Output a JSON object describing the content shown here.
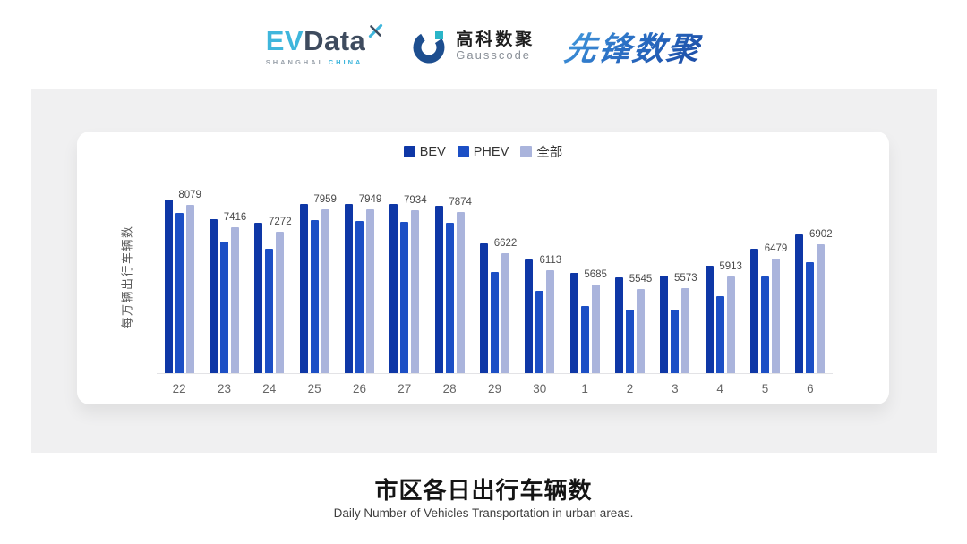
{
  "header": {
    "logos": {
      "evdata": {
        "ev": "EV",
        "data": "Data",
        "sub_left": "SHANGHAI",
        "sub_right": "CHINA",
        "accent_color": "#3FB6DC",
        "dark_color": "#3E4B5E"
      },
      "gausscode": {
        "cn": "高科数聚",
        "en": "Gausscode",
        "icon_color": "#1D4E8F",
        "icon_accent": "#2AB5C8"
      },
      "xianfeng": {
        "text": "先锋数聚",
        "color": "#2A6FC4"
      }
    }
  },
  "chart_card": {
    "background": "#FFFFFF",
    "panel_background": "#F0F0F1",
    "legend": [
      {
        "label": "BEV",
        "color": "#0E37A6"
      },
      {
        "label": "PHEV",
        "color": "#1C4FC5"
      },
      {
        "label": "全部",
        "color": "#AAB4DC"
      }
    ],
    "y_axis_title": "每万辆出行车辆数"
  },
  "chart_data": {
    "type": "bar",
    "title": "市区各日出行车辆数",
    "ylabel": "每万辆出行车辆数",
    "xlabel": "",
    "categories": [
      "22",
      "23",
      "24",
      "25",
      "26",
      "27",
      "28",
      "29",
      "30",
      "1",
      "2",
      "3",
      "4",
      "5",
      "6"
    ],
    "series": [
      {
        "name": "BEV",
        "color": "#0E37A6",
        "estimated": true,
        "values": [
          8240,
          7660,
          7540,
          8130,
          8120,
          8130,
          8050,
          6920,
          6450,
          6040,
          5900,
          5960,
          6250,
          6770,
          7200
        ]
      },
      {
        "name": "PHEV",
        "color": "#1C4FC5",
        "estimated": true,
        "values": [
          7850,
          6990,
          6770,
          7630,
          7610,
          7580,
          7560,
          6070,
          5500,
          5030,
          4930,
          4920,
          5320,
          5920,
          6360
        ]
      },
      {
        "name": "全部",
        "color": "#AAB4DC",
        "estimated": false,
        "values": [
          8079,
          7416,
          7272,
          7959,
          7949,
          7934,
          7874,
          6622,
          6113,
          5685,
          5545,
          5573,
          5913,
          6479,
          6902
        ]
      }
    ],
    "data_labels": [
      8079,
      7416,
      7272,
      7959,
      7949,
      7934,
      7874,
      6622,
      6113,
      5685,
      5545,
      5573,
      5913,
      6479,
      6902
    ],
    "data_labels_series": "全部",
    "ylim": [
      3000,
      8900
    ],
    "grid": false,
    "legend_position": "top"
  },
  "footer": {
    "title": "市区各日出行车辆数",
    "subtitle": "Daily Number of Vehicles Transportation in urban areas."
  }
}
